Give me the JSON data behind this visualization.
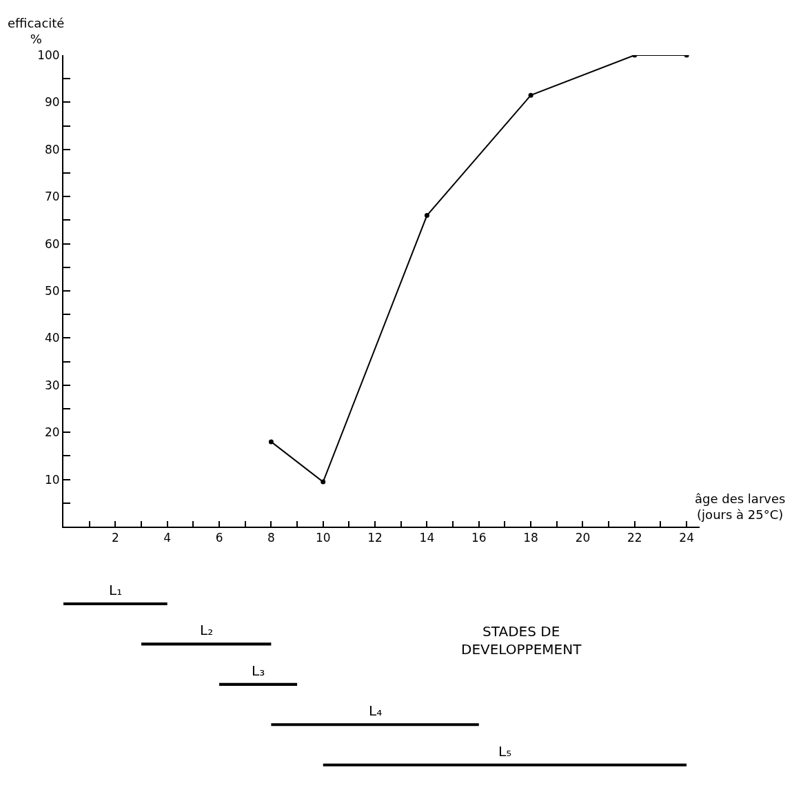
{
  "chart_data": [
    {
      "type": "line",
      "ylabel": "efficacité\n%",
      "xlabel": "âge des larves\n(jours à 25°C)",
      "x": [
        8,
        10,
        14,
        18,
        22,
        24
      ],
      "series": [
        {
          "color": "#000000",
          "values": [
            18,
            9.5,
            66,
            91.5,
            100,
            100
          ]
        }
      ],
      "xlim": [
        0,
        24.5
      ],
      "xticks": [
        {
          "value": 1,
          "label": null
        },
        2,
        {
          "value": 3,
          "label": null
        },
        4,
        {
          "value": 5,
          "label": null
        },
        6,
        {
          "value": 7,
          "label": null
        },
        8,
        {
          "value": 9,
          "label": null
        },
        10,
        {
          "value": 11,
          "label": null
        },
        12,
        {
          "value": 13,
          "label": null
        },
        14,
        {
          "value": 15,
          "label": null
        },
        16,
        {
          "value": 17,
          "label": null
        },
        18,
        {
          "value": 19,
          "label": null
        },
        20,
        {
          "value": 21,
          "label": null
        },
        22,
        {
          "value": 23,
          "label": null
        },
        24
      ],
      "ylim": [
        0,
        100
      ],
      "yticks": [
        {
          "value": 5,
          "label": null
        },
        10,
        {
          "value": 15,
          "label": null
        },
        20,
        {
          "value": 25,
          "label": null
        },
        30,
        {
          "value": 35,
          "label": null
        },
        40,
        {
          "value": 45,
          "label": null
        },
        50,
        {
          "value": 55,
          "label": null
        },
        60,
        {
          "value": 65,
          "label": null
        },
        70,
        {
          "value": 75,
          "label": null
        },
        80,
        {
          "value": 85,
          "label": null
        },
        90,
        {
          "value": 95,
          "label": null
        },
        100
      ],
      "marker": "circle",
      "line_style": "solid"
    },
    {
      "type": "bar",
      "orientation": "horizontal",
      "categories": [
        "L₁",
        "L₂",
        "L₃",
        "L₄",
        "L₅"
      ],
      "values": [
        4,
        5,
        3,
        8,
        14
      ],
      "base": [
        0,
        3,
        6,
        8,
        10
      ],
      "color": "#000000",
      "xlim": [
        0,
        24
      ],
      "xticks": [
        2,
        4,
        6,
        8,
        10,
        12,
        14,
        16,
        18,
        20,
        22,
        24
      ],
      "tick_labels": false,
      "annotations": [
        "STADES DE\nDEVELOPPEMENT"
      ]
    }
  ]
}
